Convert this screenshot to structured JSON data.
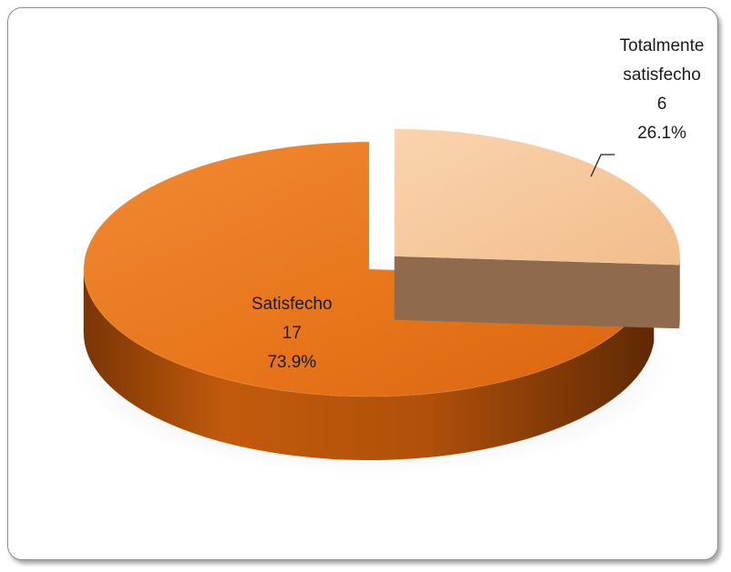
{
  "chart_data": {
    "type": "pie",
    "categories": [
      "Totalmente satisfecho",
      "Satisfecho"
    ],
    "values": [
      6,
      17
    ],
    "percent_labels": [
      "26.1%",
      "73.9%"
    ],
    "value_labels": [
      "6",
      "17"
    ],
    "label_lines": [
      [
        "Totalmente",
        "satisfecho"
      ],
      [
        "Satisfecho"
      ]
    ],
    "colors": [
      "#f6c79c",
      "#e87214"
    ],
    "side_colors": [
      "#8f6a4c",
      "#9a4609"
    ],
    "exploded": [
      true,
      false
    ],
    "legend": "none",
    "title": ""
  }
}
